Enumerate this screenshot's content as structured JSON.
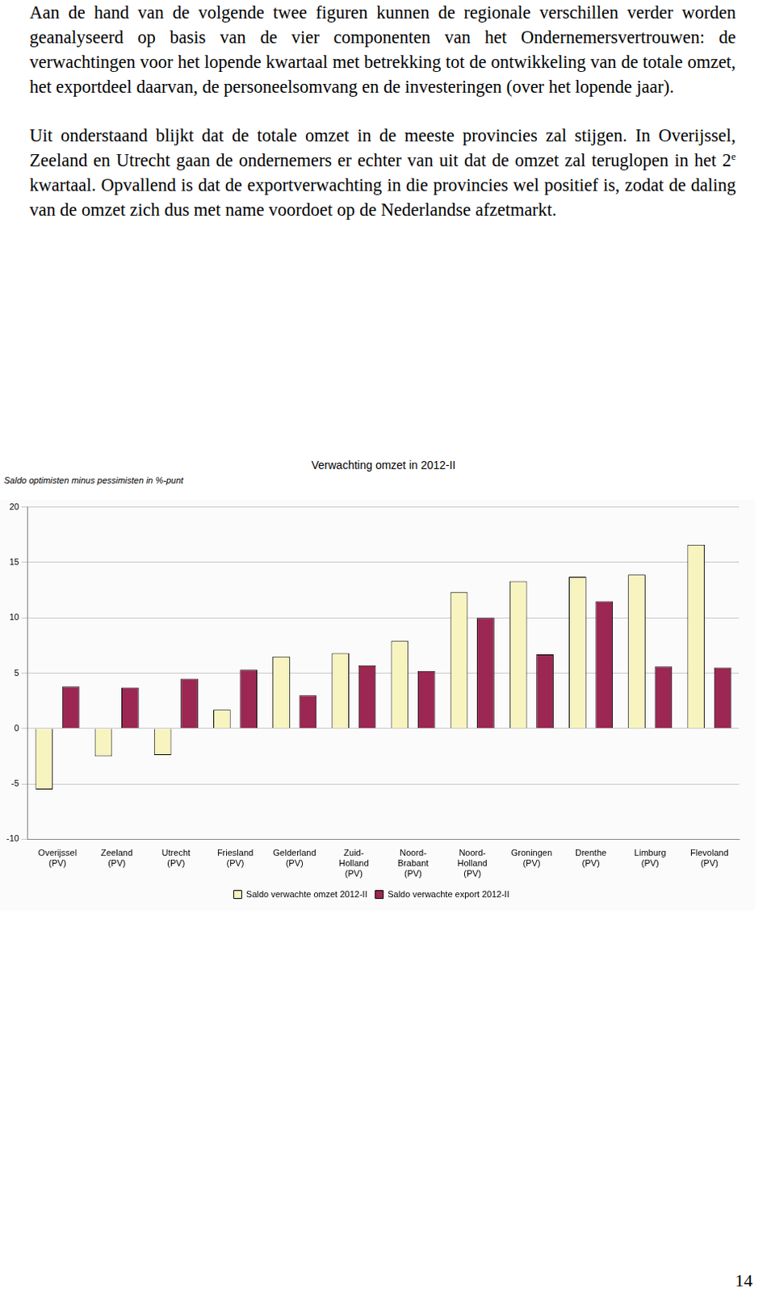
{
  "paragraphs": [
    [
      {
        "text": "Aan de hand van de volgende twee figuren kunnen de regionale verschillen verder worden geanalyseerd op basis van de vier componenten van het Ondernemersvertrouwen: de verwachtingen voor het lopende kwartaal met betrekking tot de ontwikkeling van de totale omzet, het exportdeel daarvan, de personeelsomvang en de investeringen (over het lopende jaar)."
      }
    ],
    [
      {
        "text": "Uit onderstaand blijkt dat de totale omzet in de meeste provincies zal stijgen. In Overijssel, Zeeland en Utrecht gaan de ondernemers er echter van uit dat de omzet zal teruglopen in het 2"
      },
      {
        "sup": "e"
      },
      {
        "text": " kwartaal. Opvallend is dat de exportverwachting in die provincies wel positief is, zodat de daling van de omzet zich dus met name voordoet op de Nederlandse afzetmarkt."
      }
    ]
  ],
  "page_number": "14",
  "chart_data": {
    "type": "bar",
    "title": "Verwachting omzet in 2012-II",
    "y_label": "Saldo optimisten minus pessimisten in %-punt",
    "categories": [
      "Overijssel (PV)",
      "Zeeland (PV)",
      "Utrecht (PV)",
      "Friesland (PV)",
      "Gelderland (PV)",
      "Zuid-Holland (PV)",
      "Noord-Brabant (PV)",
      "Noord-Holland (PV)",
      "Groningen (PV)",
      "Drenthe (PV)",
      "Limburg (PV)",
      "Flevoland (PV)"
    ],
    "series": [
      {
        "name": "Saldo verwachte omzet 2012-II",
        "color": "#f8f4c0",
        "values": [
          -5.5,
          -2.5,
          -2.4,
          1.7,
          6.5,
          6.8,
          7.9,
          12.3,
          13.3,
          13.7,
          13.9,
          16.6
        ]
      },
      {
        "name": "Saldo verwachte export 2012-II",
        "color": "#9b2752",
        "values": [
          3.8,
          3.7,
          4.5,
          5.3,
          3.0,
          5.7,
          5.2,
          10.0,
          6.7,
          11.5,
          5.6,
          5.5
        ]
      }
    ],
    "ylim": [
      -10,
      20
    ],
    "yticks": [
      -10,
      -5,
      0,
      5,
      10,
      15,
      20
    ],
    "grid": true,
    "legend": "bottom"
  }
}
